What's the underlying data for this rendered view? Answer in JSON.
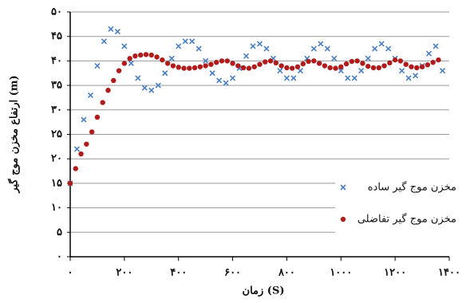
{
  "chart_data": {
    "type": "scatter",
    "xlabel": "زمان (S)",
    "ylabel": "ارتفاع مخزن موج گیر (m)",
    "xlim": [
      0,
      1400
    ],
    "ylim": [
      0,
      50
    ],
    "xticks": [
      {
        "value": 0,
        "label": "۰"
      },
      {
        "value": 200,
        "label": "۲۰۰"
      },
      {
        "value": 400,
        "label": "۴۰۰"
      },
      {
        "value": 600,
        "label": "۶۰۰"
      },
      {
        "value": 800,
        "label": "۸۰۰"
      },
      {
        "value": 1000,
        "label": "۱۰۰۰"
      },
      {
        "value": 1200,
        "label": "۱۲۰۰"
      },
      {
        "value": 1400,
        "label": "۱۴۰۰"
      }
    ],
    "yticks": [
      {
        "value": 0,
        "label": "۰"
      },
      {
        "value": 5,
        "label": "۵"
      },
      {
        "value": 10,
        "label": "۱۰"
      },
      {
        "value": 15,
        "label": "۱۵"
      },
      {
        "value": 20,
        "label": "۲۰"
      },
      {
        "value": 25,
        "label": "۲۵"
      },
      {
        "value": 30,
        "label": "۳۰"
      },
      {
        "value": 35,
        "label": "۳۵"
      },
      {
        "value": 40,
        "label": "۴۰"
      },
      {
        "value": 45,
        "label": "۴۵"
      },
      {
        "value": 50,
        "label": "۵۰"
      }
    ],
    "grid": true,
    "legend": "right",
    "series": [
      {
        "name": "مخزن موج گیر ساده",
        "color": "#4a7fc1",
        "marker": "x",
        "x": [
          0,
          25,
          50,
          75,
          100,
          125,
          150,
          175,
          200,
          225,
          250,
          275,
          300,
          325,
          350,
          375,
          400,
          425,
          450,
          475,
          500,
          525,
          550,
          575,
          600,
          625,
          650,
          675,
          700,
          725,
          750,
          775,
          800,
          825,
          850,
          875,
          900,
          925,
          950,
          975,
          1000,
          1025,
          1050,
          1075,
          1100,
          1125,
          1150,
          1175,
          1200,
          1225,
          1250,
          1275,
          1300,
          1325,
          1350,
          1375
        ],
        "values": [
          15,
          22,
          28,
          33,
          39,
          44,
          46.5,
          46,
          43,
          39.5,
          36.5,
          34.5,
          34,
          35,
          37.5,
          40.5,
          43,
          44,
          44,
          42.5,
          40,
          37.5,
          36,
          35.5,
          36.5,
          38.5,
          41,
          43,
          43.5,
          42.5,
          40.5,
          38,
          36.5,
          36.5,
          38,
          40.5,
          42.5,
          43.5,
          42.5,
          40.5,
          38,
          36.5,
          36.5,
          38,
          40.5,
          42.5,
          43.5,
          42.5,
          40.5,
          38,
          36.5,
          37,
          39,
          41.5,
          43,
          38
        ]
      },
      {
        "name": "مخزن موج گیر تفاضلی",
        "color": "#b01c1c",
        "marker": "circle",
        "x": [
          0,
          20,
          40,
          60,
          80,
          100,
          120,
          140,
          160,
          180,
          200,
          220,
          240,
          260,
          280,
          300,
          320,
          340,
          360,
          380,
          400,
          420,
          440,
          460,
          480,
          500,
          520,
          540,
          560,
          580,
          600,
          620,
          640,
          660,
          680,
          700,
          720,
          740,
          760,
          780,
          800,
          820,
          840,
          860,
          880,
          900,
          920,
          940,
          960,
          980,
          1000,
          1020,
          1040,
          1060,
          1080,
          1100,
          1120,
          1140,
          1160,
          1180,
          1200,
          1220,
          1240,
          1260,
          1280,
          1300,
          1320,
          1340,
          1360
        ],
        "values": [
          15,
          18,
          21,
          23,
          25.5,
          28.5,
          31.5,
          34,
          36,
          38,
          39.5,
          40.5,
          41,
          41.2,
          41.3,
          41.2,
          40.8,
          40.2,
          39.5,
          39,
          38.7,
          38.5,
          38.5,
          38.6,
          38.8,
          39,
          39.3,
          39.7,
          40,
          40,
          39.5,
          39,
          38.6,
          38.5,
          38.8,
          39.3,
          39.8,
          40,
          39.6,
          39,
          38.6,
          38.5,
          38.8,
          39.4,
          39.9,
          40,
          39.5,
          39,
          38.6,
          38.5,
          38.8,
          39.4,
          39.9,
          40,
          39.5,
          38.9,
          38.6,
          38.6,
          39,
          39.6,
          40.2,
          40,
          39.3,
          38.8,
          38.6,
          38.8,
          39.2,
          39.7,
          40.2
        ]
      }
    ]
  }
}
